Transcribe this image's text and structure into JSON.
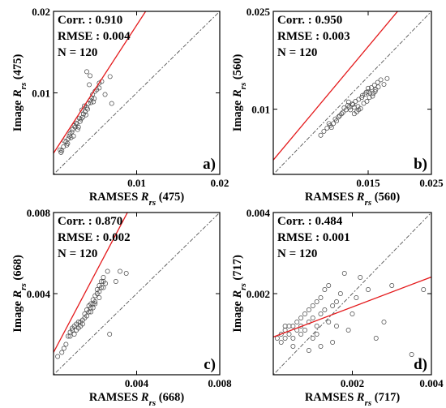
{
  "colors": {
    "fit_line": "#e41a1c",
    "one_to_one": "#555555",
    "points": "#444444",
    "frame": "#000000"
  },
  "chart_data": [
    {
      "type": "scatter",
      "panel": "a)",
      "xlabel": {
        "prefix": "RAMSES",
        "base": "R",
        "sub": "rs",
        "suffix": "(475)"
      },
      "ylabel": {
        "prefix": "Image",
        "base": "R",
        "sub": "rs",
        "suffix": "(475)"
      },
      "xlim": [
        0,
        0.02
      ],
      "ylim": [
        0,
        0.02
      ],
      "xticks": [
        0.01,
        0.02
      ],
      "xtick_labels": [
        "0.01",
        "0.02"
      ],
      "yticks": [
        0.01,
        0.02
      ],
      "ytick_labels": [
        "0.01",
        "0.02"
      ],
      "stats": [
        "Corr. : 0.910",
        "RMSE : 0.004",
        "N = 120"
      ],
      "fit_line": {
        "slope": 1.57,
        "intercept": 0.0026
      },
      "one_to_one": true,
      "points": [
        [
          0.0008,
          0.003
        ],
        [
          0.0012,
          0.0034
        ],
        [
          0.001,
          0.0029
        ],
        [
          0.0015,
          0.004
        ],
        [
          0.0018,
          0.0044
        ],
        [
          0.002,
          0.005
        ],
        [
          0.0022,
          0.0052
        ],
        [
          0.0019,
          0.0047
        ],
        [
          0.0025,
          0.006
        ],
        [
          0.0027,
          0.0063
        ],
        [
          0.0023,
          0.0055
        ],
        [
          0.003,
          0.0058
        ],
        [
          0.0032,
          0.0065
        ],
        [
          0.0035,
          0.007
        ],
        [
          0.0033,
          0.0068
        ],
        [
          0.0036,
          0.0074
        ],
        [
          0.0038,
          0.0077
        ],
        [
          0.004,
          0.0082
        ],
        [
          0.0042,
          0.0087
        ],
        [
          0.0044,
          0.0091
        ],
        [
          0.0046,
          0.0094
        ],
        [
          0.0041,
          0.008
        ],
        [
          0.0039,
          0.0073
        ],
        [
          0.0045,
          0.0088
        ],
        [
          0.0047,
          0.0098
        ],
        [
          0.005,
          0.0102
        ],
        [
          0.0052,
          0.0104
        ],
        [
          0.0055,
          0.0112
        ],
        [
          0.0058,
          0.0114
        ],
        [
          0.0043,
          0.011
        ],
        [
          0.004,
          0.0126
        ],
        [
          0.0044,
          0.0121
        ],
        [
          0.0062,
          0.0098
        ],
        [
          0.0055,
          0.0106
        ],
        [
          0.0029,
          0.0055
        ],
        [
          0.0026,
          0.0058
        ],
        [
          0.0024,
          0.0047
        ],
        [
          0.0017,
          0.0038
        ],
        [
          0.0013,
          0.0041
        ],
        [
          0.0034,
          0.0079
        ],
        [
          0.0037,
          0.0084
        ],
        [
          0.0048,
          0.0089
        ],
        [
          0.007,
          0.0087
        ],
        [
          0.0068,
          0.012
        ],
        [
          0.0028,
          0.0062
        ],
        [
          0.0031,
          0.0069
        ],
        [
          0.0021,
          0.0045
        ],
        [
          0.0016,
          0.0036
        ],
        [
          0.0009,
          0.0027
        ],
        [
          0.0049,
          0.0093
        ]
      ]
    },
    {
      "type": "scatter",
      "panel": "b)",
      "xlabel": {
        "prefix": "RAMSES",
        "base": "R",
        "sub": "rs",
        "suffix": "(560)"
      },
      "ylabel": {
        "prefix": "Image",
        "base": "R",
        "sub": "rs",
        "suffix": "(560)"
      },
      "xlim": [
        0,
        0.025
      ],
      "ylim": [
        0,
        0.025
      ],
      "xticks": [
        0.015,
        0.025
      ],
      "xtick_labels": [
        "0.015",
        "0.025"
      ],
      "yticks": [
        0.01,
        0.025
      ],
      "ytick_labels": [
        "0.01",
        "0.025"
      ],
      "stats": [
        "Corr. : 0.950",
        "RMSE : 0.003",
        "N = 120"
      ],
      "fit_line": {
        "slope": 1.16,
        "intercept": 0.0022
      },
      "one_to_one": true,
      "points": [
        [
          0.0075,
          0.006
        ],
        [
          0.008,
          0.0066
        ],
        [
          0.0085,
          0.0071
        ],
        [
          0.009,
          0.0075
        ],
        [
          0.0095,
          0.0078
        ],
        [
          0.01,
          0.0082
        ],
        [
          0.0105,
          0.009
        ],
        [
          0.011,
          0.0095
        ],
        [
          0.0115,
          0.0099
        ],
        [
          0.012,
          0.0103
        ],
        [
          0.0125,
          0.0108
        ],
        [
          0.013,
          0.0112
        ],
        [
          0.0135,
          0.0115
        ],
        [
          0.014,
          0.0118
        ],
        [
          0.0145,
          0.0123
        ],
        [
          0.015,
          0.0127
        ],
        [
          0.0155,
          0.0133
        ],
        [
          0.016,
          0.0137
        ],
        [
          0.0165,
          0.0141
        ],
        [
          0.017,
          0.0145
        ],
        [
          0.0112,
          0.0102
        ],
        [
          0.0118,
          0.0106
        ],
        [
          0.0122,
          0.0099
        ],
        [
          0.0128,
          0.0103
        ],
        [
          0.0132,
          0.0096
        ],
        [
          0.0138,
          0.0101
        ],
        [
          0.0143,
          0.0109
        ],
        [
          0.0148,
          0.0112
        ],
        [
          0.0152,
          0.0118
        ],
        [
          0.0158,
          0.0124
        ],
        [
          0.0162,
          0.013
        ],
        [
          0.0166,
          0.0134
        ],
        [
          0.015,
          0.0132
        ],
        [
          0.0175,
          0.0138
        ],
        [
          0.018,
          0.0147
        ],
        [
          0.0128,
          0.0093
        ],
        [
          0.0135,
          0.0099
        ],
        [
          0.0098,
          0.0085
        ],
        [
          0.0092,
          0.0072
        ],
        [
          0.0088,
          0.0078
        ],
        [
          0.0141,
          0.0121
        ],
        [
          0.0147,
          0.0126
        ],
        [
          0.0153,
          0.0125
        ],
        [
          0.0157,
          0.012
        ],
        [
          0.0161,
          0.0127
        ],
        [
          0.0134,
          0.0104
        ],
        [
          0.0126,
          0.0107
        ],
        [
          0.0119,
          0.0111
        ],
        [
          0.0108,
          0.0093
        ],
        [
          0.0103,
          0.0088
        ]
      ]
    },
    {
      "type": "scatter",
      "panel": "c)",
      "xlabel": {
        "prefix": "RAMSES",
        "base": "R",
        "sub": "rs",
        "suffix": "(668)"
      },
      "ylabel": {
        "prefix": "Image",
        "base": "R",
        "sub": "rs",
        "suffix": "(668)"
      },
      "xlim": [
        0,
        0.008
      ],
      "ylim": [
        0,
        0.008
      ],
      "xticks": [
        0.004,
        0.008
      ],
      "xtick_labels": [
        "0.004",
        "0.008"
      ],
      "yticks": [
        0.004,
        0.008
      ],
      "ytick_labels": [
        "0.004",
        "0.008"
      ],
      "stats": [
        "Corr. : 0.870",
        "RMSE : 0.002",
        "N = 120"
      ],
      "fit_line": {
        "slope": 1.94,
        "intercept": 0.0011
      },
      "one_to_one": true,
      "points": [
        [
          0.0004,
          0.0011
        ],
        [
          0.0006,
          0.0015
        ],
        [
          0.0007,
          0.0019
        ],
        [
          0.0008,
          0.0021
        ],
        [
          0.0009,
          0.0023
        ],
        [
          0.001,
          0.0024
        ],
        [
          0.0011,
          0.0025
        ],
        [
          0.0012,
          0.0023
        ],
        [
          0.0013,
          0.0026
        ],
        [
          0.0014,
          0.0027
        ],
        [
          0.0015,
          0.003
        ],
        [
          0.0016,
          0.0032
        ],
        [
          0.0017,
          0.0034
        ],
        [
          0.0018,
          0.0035
        ],
        [
          0.0019,
          0.0037
        ],
        [
          0.002,
          0.0039
        ],
        [
          0.0021,
          0.0042
        ],
        [
          0.0022,
          0.0044
        ],
        [
          0.0023,
          0.0046
        ],
        [
          0.0024,
          0.0048
        ],
        [
          0.0025,
          0.0045
        ],
        [
          0.0026,
          0.0051
        ],
        [
          0.003,
          0.0046
        ],
        [
          0.0032,
          0.0051
        ],
        [
          0.0035,
          0.005
        ],
        [
          0.0027,
          0.002
        ],
        [
          0.0008,
          0.0019
        ],
        [
          0.0009,
          0.0022
        ],
        [
          0.0011,
          0.0022
        ],
        [
          0.0012,
          0.0026
        ],
        [
          0.0013,
          0.0024
        ],
        [
          0.0016,
          0.0029
        ],
        [
          0.0017,
          0.0031
        ],
        [
          0.0018,
          0.0033
        ],
        [
          0.0019,
          0.0035
        ],
        [
          0.002,
          0.0036
        ],
        [
          0.0021,
          0.004
        ],
        [
          0.0022,
          0.0041
        ],
        [
          0.0023,
          0.0043
        ],
        [
          0.0024,
          0.0046
        ],
        [
          0.0005,
          0.0013
        ],
        [
          0.0002,
          0.0009
        ],
        [
          0.001,
          0.002
        ],
        [
          0.0014,
          0.0025
        ],
        [
          0.0015,
          0.0028
        ],
        [
          0.0018,
          0.0031
        ],
        [
          0.0019,
          0.0033
        ],
        [
          0.002,
          0.0035
        ],
        [
          0.0022,
          0.0038
        ],
        [
          0.0024,
          0.0043
        ]
      ]
    },
    {
      "type": "scatter",
      "panel": "d)",
      "xlabel": {
        "prefix": "RAMSES",
        "base": "R",
        "sub": "rs",
        "suffix": "(717)"
      },
      "ylabel": {
        "prefix": "Image",
        "base": "R",
        "sub": "rs",
        "suffix": "(717)"
      },
      "xlim": [
        0,
        0.004
      ],
      "ylim": [
        0,
        0.004
      ],
      "xticks": [
        0.002,
        0.004
      ],
      "xtick_labels": [
        "0.002",
        "0.004"
      ],
      "yticks": [
        0.002,
        0.004
      ],
      "ytick_labels": [
        "0.002",
        "0.004"
      ],
      "stats": [
        "Corr. : 0.484",
        "RMSE : 0.001",
        "N = 120"
      ],
      "fit_line": {
        "slope": 0.37,
        "intercept": 0.00093
      },
      "one_to_one": true,
      "points": [
        [
          0.0001,
          0.0009
        ],
        [
          0.0002,
          0.001
        ],
        [
          0.0002,
          0.0008
        ],
        [
          0.0003,
          0.0011
        ],
        [
          0.0003,
          0.0009
        ],
        [
          0.0004,
          0.0012
        ],
        [
          0.0004,
          0.001
        ],
        [
          0.0005,
          0.0012
        ],
        [
          0.0005,
          0.0009
        ],
        [
          0.0006,
          0.0013
        ],
        [
          0.0006,
          0.0011
        ],
        [
          0.0007,
          0.0014
        ],
        [
          0.0007,
          0.0012
        ],
        [
          0.0008,
          0.0015
        ],
        [
          0.0008,
          0.0011
        ],
        [
          0.0009,
          0.0016
        ],
        [
          0.0009,
          0.0013
        ],
        [
          0.001,
          0.0017
        ],
        [
          0.001,
          0.0014
        ],
        [
          0.0011,
          0.0018
        ],
        [
          0.0011,
          0.0012
        ],
        [
          0.0012,
          0.0019
        ],
        [
          0.0012,
          0.0015
        ],
        [
          0.0013,
          0.0021
        ],
        [
          0.0013,
          0.0016
        ],
        [
          0.0014,
          0.0022
        ],
        [
          0.0014,
          0.0013
        ],
        [
          0.0015,
          0.0017
        ],
        [
          0.0016,
          0.0018
        ],
        [
          0.0017,
          0.002
        ],
        [
          0.0018,
          0.0025
        ],
        [
          0.0019,
          0.0011
        ],
        [
          0.002,
          0.0015
        ],
        [
          0.0021,
          0.0019
        ],
        [
          0.0022,
          0.0024
        ],
        [
          0.0024,
          0.0021
        ],
        [
          0.0026,
          0.0009
        ],
        [
          0.0028,
          0.0013
        ],
        [
          0.003,
          0.0022
        ],
        [
          0.0035,
          0.0005
        ],
        [
          0.0038,
          0.0021
        ],
        [
          0.0015,
          0.0008
        ],
        [
          0.0012,
          0.0007
        ],
        [
          0.0005,
          0.0007
        ],
        [
          0.0009,
          0.0006
        ],
        [
          0.0003,
          0.0012
        ],
        [
          0.0011,
          0.001
        ],
        [
          0.0016,
          0.0012
        ],
        [
          0.001,
          0.0009
        ],
        [
          0.0007,
          0.001
        ]
      ]
    }
  ]
}
